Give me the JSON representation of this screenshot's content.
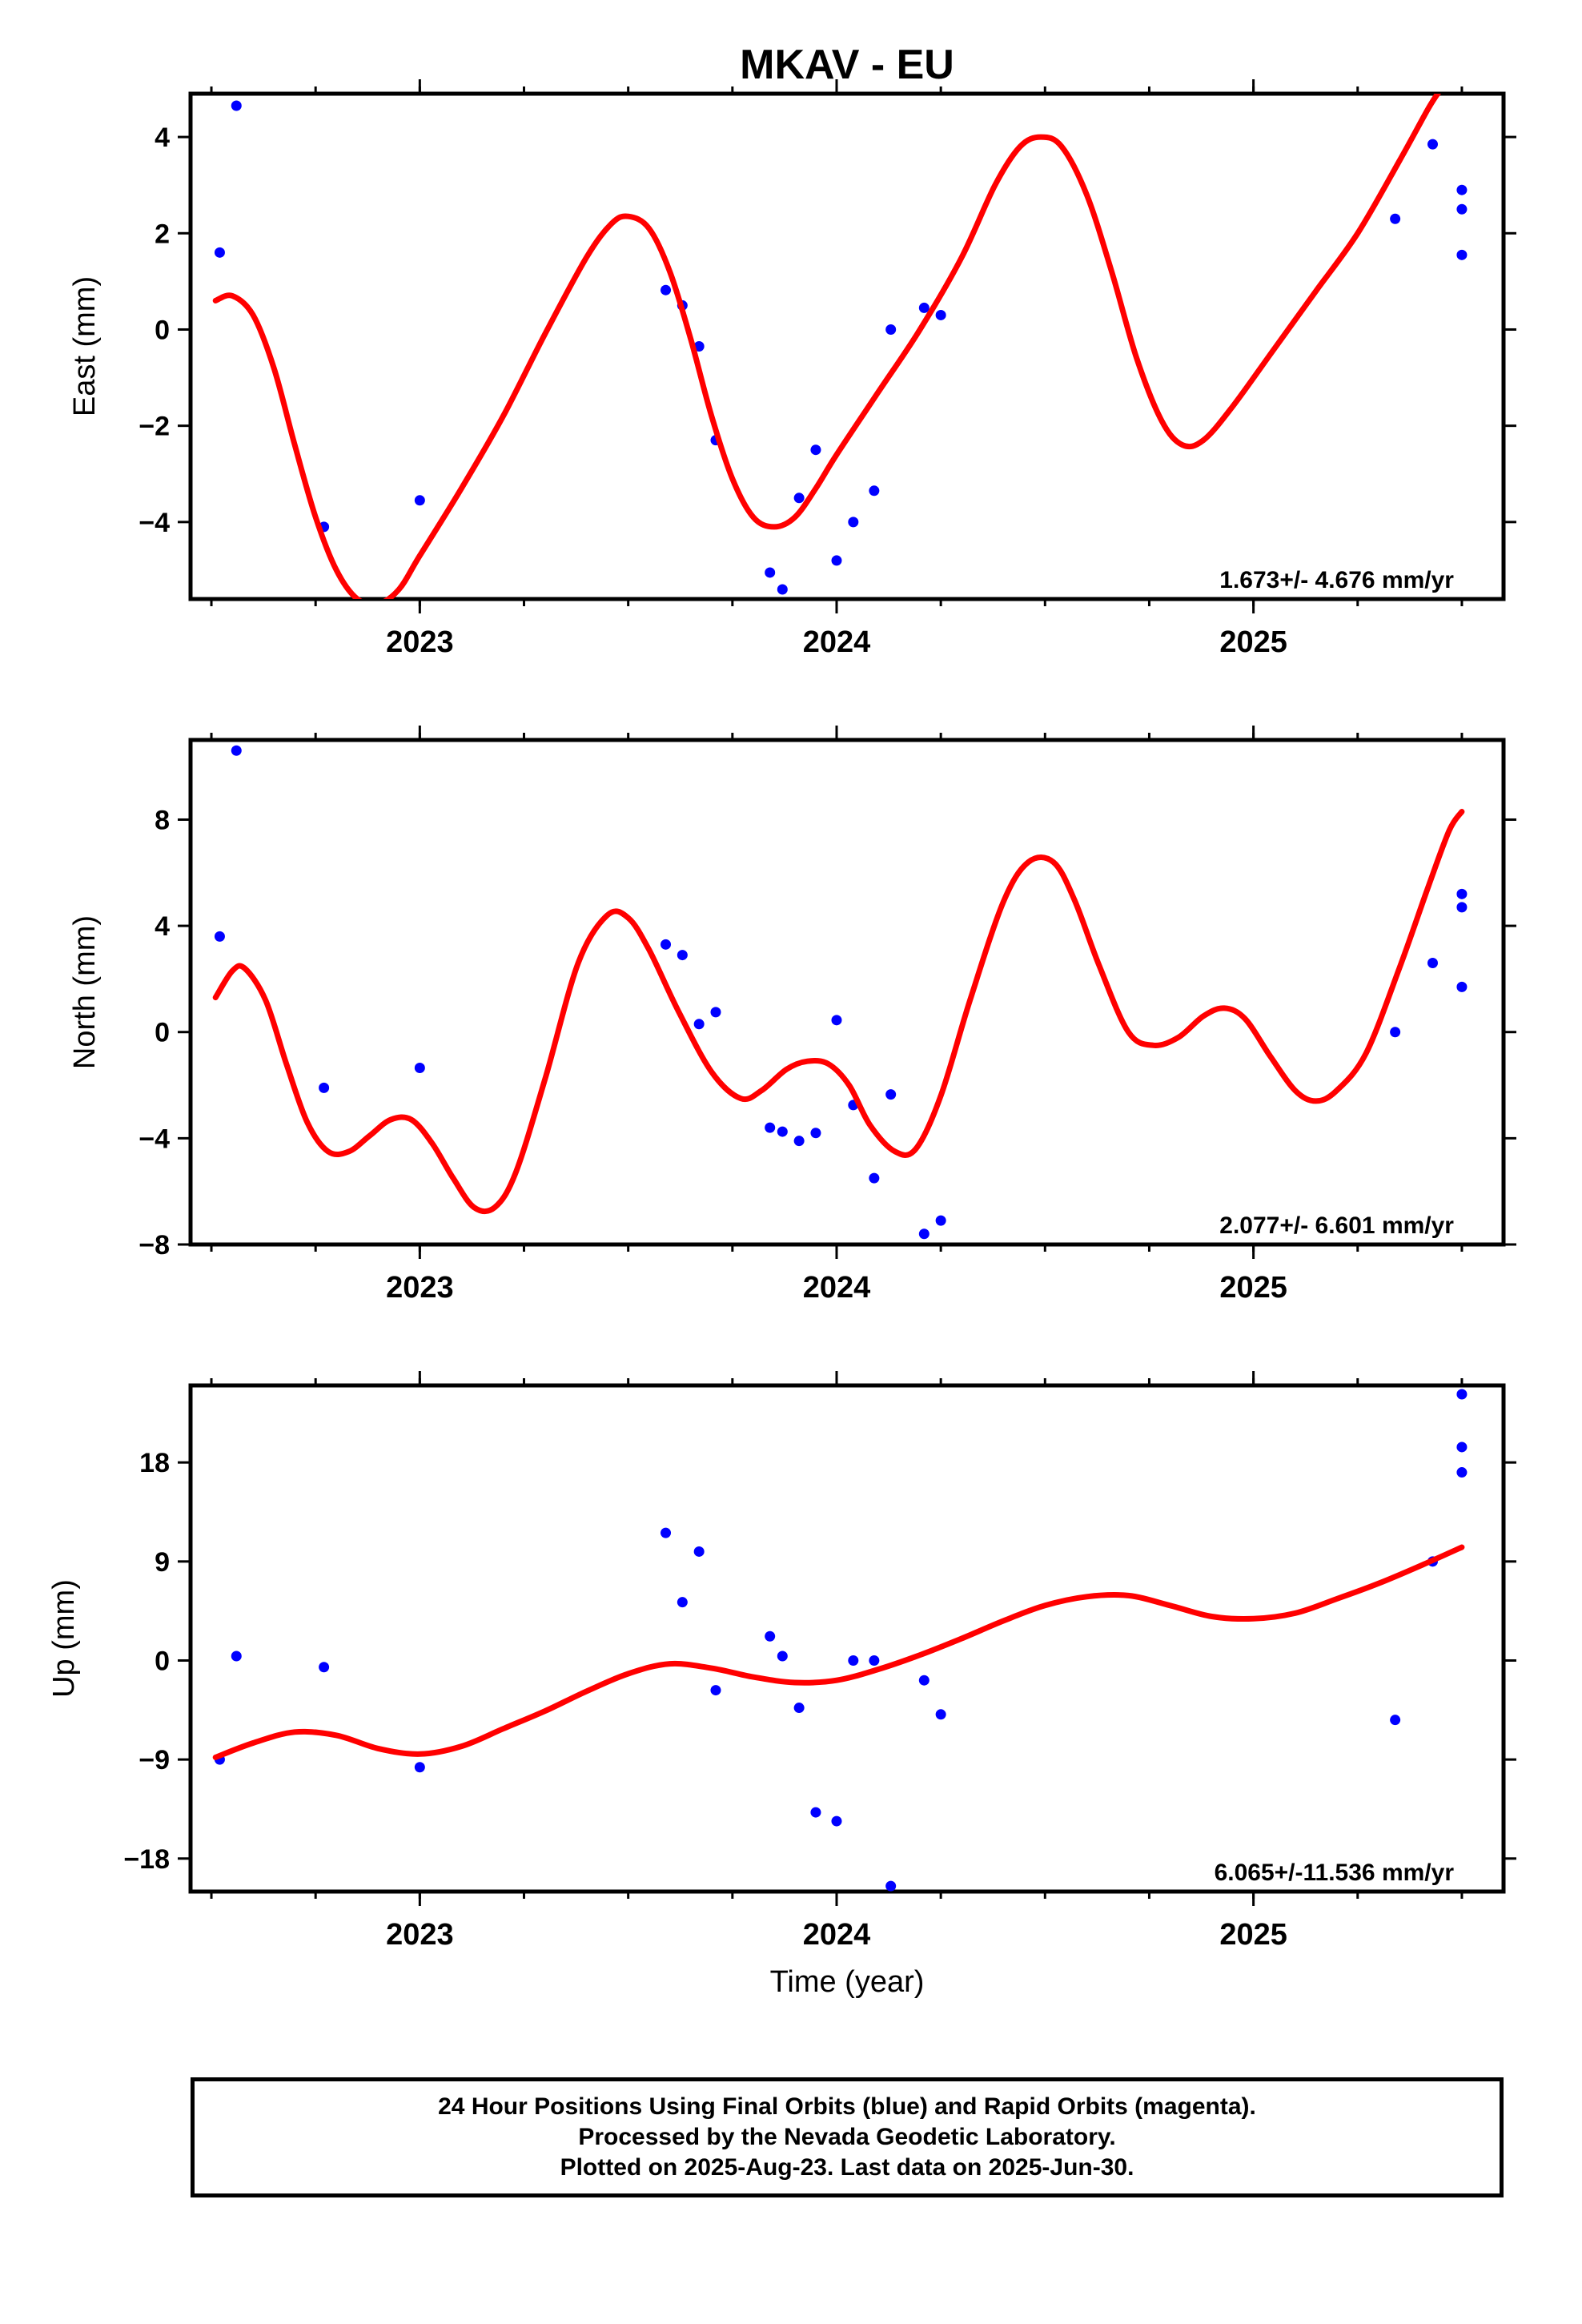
{
  "title": "MKAV - EU",
  "xlabel": "Time (year)",
  "colors": {
    "fit": "#ff0000",
    "final": "#0000ff",
    "axis": "#000000"
  },
  "footer": {
    "line1": "24 Hour Positions Using Final Orbits (blue) and Rapid Orbits (magenta).",
    "line2": "Processed by the Nevada Geodetic Laboratory.",
    "line3": "Plotted on 2025-Aug-23. Last data on 2025-Jun-30."
  },
  "chart_data": [
    {
      "type": "scatter",
      "panel": "east",
      "ylabel": "East (mm)",
      "rate_text": "1.673+/- 4.676 mm/yr",
      "xlim": [
        2022.45,
        2025.6
      ],
      "ylim": [
        -5.6,
        4.9
      ],
      "yticks": [
        -4,
        -2,
        0,
        2,
        4
      ],
      "xticks": [
        2023,
        2024,
        2025
      ],
      "grid": false,
      "points": [
        [
          2022.52,
          1.6
        ],
        [
          2022.56,
          4.65
        ],
        [
          2022.77,
          -4.1
        ],
        [
          2023.0,
          -3.55
        ],
        [
          2023.59,
          0.82
        ],
        [
          2023.63,
          0.5
        ],
        [
          2023.67,
          -0.35
        ],
        [
          2023.71,
          -2.3
        ],
        [
          2023.84,
          -5.05
        ],
        [
          2023.87,
          -5.4
        ],
        [
          2023.91,
          -3.5
        ],
        [
          2023.95,
          -2.5
        ],
        [
          2024.0,
          -4.8
        ],
        [
          2024.04,
          -4.0
        ],
        [
          2024.09,
          -3.35
        ],
        [
          2024.13,
          0.0
        ],
        [
          2024.21,
          0.45
        ],
        [
          2024.25,
          0.3
        ],
        [
          2025.34,
          2.3
        ],
        [
          2025.43,
          3.85
        ],
        [
          2025.5,
          2.9
        ],
        [
          2025.5,
          2.5
        ],
        [
          2025.5,
          1.55
        ]
      ],
      "fit": [
        [
          2022.51,
          0.6
        ],
        [
          2022.55,
          0.7
        ],
        [
          2022.6,
          0.3
        ],
        [
          2022.65,
          -0.8
        ],
        [
          2022.7,
          -2.4
        ],
        [
          2022.75,
          -3.9
        ],
        [
          2022.8,
          -5.0
        ],
        [
          2022.85,
          -5.6
        ],
        [
          2022.9,
          -5.7
        ],
        [
          2022.95,
          -5.4
        ],
        [
          2023.0,
          -4.7
        ],
        [
          2023.1,
          -3.3
        ],
        [
          2023.2,
          -1.8
        ],
        [
          2023.3,
          -0.1
        ],
        [
          2023.4,
          1.5
        ],
        [
          2023.46,
          2.2
        ],
        [
          2023.5,
          2.35
        ],
        [
          2023.55,
          2.1
        ],
        [
          2023.6,
          1.2
        ],
        [
          2023.65,
          -0.2
        ],
        [
          2023.7,
          -1.8
        ],
        [
          2023.75,
          -3.1
        ],
        [
          2023.8,
          -3.9
        ],
        [
          2023.85,
          -4.1
        ],
        [
          2023.9,
          -3.9
        ],
        [
          2023.95,
          -3.3
        ],
        [
          2024.0,
          -2.6
        ],
        [
          2024.1,
          -1.3
        ],
        [
          2024.2,
          0.0
        ],
        [
          2024.3,
          1.5
        ],
        [
          2024.38,
          3.0
        ],
        [
          2024.44,
          3.8
        ],
        [
          2024.49,
          4.0
        ],
        [
          2024.54,
          3.8
        ],
        [
          2024.6,
          2.8
        ],
        [
          2024.66,
          1.2
        ],
        [
          2024.72,
          -0.6
        ],
        [
          2024.78,
          -1.9
        ],
        [
          2024.83,
          -2.4
        ],
        [
          2024.88,
          -2.3
        ],
        [
          2024.95,
          -1.6
        ],
        [
          2025.05,
          -0.4
        ],
        [
          2025.15,
          0.8
        ],
        [
          2025.25,
          2.0
        ],
        [
          2025.35,
          3.5
        ],
        [
          2025.42,
          4.6
        ],
        [
          2025.45,
          5.0
        ]
      ]
    },
    {
      "type": "scatter",
      "panel": "north",
      "ylabel": "North (mm)",
      "rate_text": "2.077+/- 6.601 mm/yr",
      "xlim": [
        2022.45,
        2025.6
      ],
      "ylim": [
        -8,
        11
      ],
      "yticks": [
        -8,
        -4,
        0,
        4,
        8
      ],
      "xticks": [
        2023,
        2024,
        2025
      ],
      "grid": false,
      "points": [
        [
          2022.52,
          3.6
        ],
        [
          2022.56,
          10.6
        ],
        [
          2022.77,
          -2.1
        ],
        [
          2023.0,
          -1.35
        ],
        [
          2023.59,
          3.3
        ],
        [
          2023.63,
          2.9
        ],
        [
          2023.67,
          0.3
        ],
        [
          2023.71,
          0.75
        ],
        [
          2023.84,
          -3.6
        ],
        [
          2023.87,
          -3.75
        ],
        [
          2023.91,
          -4.1
        ],
        [
          2023.95,
          -3.8
        ],
        [
          2024.0,
          0.45
        ],
        [
          2024.04,
          -2.75
        ],
        [
          2024.09,
          -5.5
        ],
        [
          2024.13,
          -2.35
        ],
        [
          2024.21,
          -7.6
        ],
        [
          2024.25,
          -7.1
        ],
        [
          2025.34,
          0.0
        ],
        [
          2025.43,
          2.6
        ],
        [
          2025.5,
          5.2
        ],
        [
          2025.5,
          4.7
        ],
        [
          2025.5,
          1.7
        ]
      ],
      "fit": [
        [
          2022.51,
          1.3
        ],
        [
          2022.55,
          2.3
        ],
        [
          2022.58,
          2.4
        ],
        [
          2022.63,
          1.2
        ],
        [
          2022.68,
          -1.2
        ],
        [
          2022.73,
          -3.4
        ],
        [
          2022.78,
          -4.5
        ],
        [
          2022.83,
          -4.5
        ],
        [
          2022.88,
          -3.9
        ],
        [
          2022.93,
          -3.3
        ],
        [
          2022.98,
          -3.3
        ],
        [
          2023.03,
          -4.2
        ],
        [
          2023.08,
          -5.5
        ],
        [
          2023.13,
          -6.6
        ],
        [
          2023.18,
          -6.6
        ],
        [
          2023.23,
          -5.3
        ],
        [
          2023.3,
          -1.8
        ],
        [
          2023.38,
          2.6
        ],
        [
          2023.45,
          4.4
        ],
        [
          2023.5,
          4.3
        ],
        [
          2023.55,
          3.1
        ],
        [
          2023.62,
          0.8
        ],
        [
          2023.7,
          -1.5
        ],
        [
          2023.77,
          -2.5
        ],
        [
          2023.82,
          -2.2
        ],
        [
          2023.88,
          -1.4
        ],
        [
          2023.93,
          -1.1
        ],
        [
          2023.98,
          -1.2
        ],
        [
          2024.03,
          -2.0
        ],
        [
          2024.08,
          -3.5
        ],
        [
          2024.14,
          -4.5
        ],
        [
          2024.19,
          -4.4
        ],
        [
          2024.25,
          -2.4
        ],
        [
          2024.32,
          1.2
        ],
        [
          2024.4,
          4.9
        ],
        [
          2024.46,
          6.4
        ],
        [
          2024.52,
          6.4
        ],
        [
          2024.57,
          5.0
        ],
        [
          2024.63,
          2.5
        ],
        [
          2024.7,
          0.0
        ],
        [
          2024.76,
          -0.5
        ],
        [
          2024.82,
          -0.2
        ],
        [
          2024.88,
          0.6
        ],
        [
          2024.93,
          0.9
        ],
        [
          2024.98,
          0.5
        ],
        [
          2025.04,
          -0.9
        ],
        [
          2025.1,
          -2.2
        ],
        [
          2025.15,
          -2.6
        ],
        [
          2025.2,
          -2.2
        ],
        [
          2025.27,
          -0.8
        ],
        [
          2025.35,
          2.4
        ],
        [
          2025.42,
          5.5
        ],
        [
          2025.47,
          7.6
        ],
        [
          2025.5,
          8.3
        ]
      ]
    },
    {
      "type": "scatter",
      "panel": "up",
      "ylabel": "Up (mm)",
      "rate_text": "6.065+/-11.536 mm/yr",
      "xlim": [
        2022.45,
        2025.6
      ],
      "ylim": [
        -21,
        25
      ],
      "yticks": [
        -18,
        -9,
        0,
        9,
        18
      ],
      "xticks": [
        2023,
        2024,
        2025
      ],
      "grid": false,
      "points": [
        [
          2022.52,
          -9.0
        ],
        [
          2022.56,
          0.4
        ],
        [
          2022.77,
          -0.6
        ],
        [
          2023.0,
          -9.7
        ],
        [
          2023.59,
          11.6
        ],
        [
          2023.63,
          5.3
        ],
        [
          2023.67,
          9.9
        ],
        [
          2023.71,
          -2.7
        ],
        [
          2023.84,
          2.2
        ],
        [
          2023.87,
          0.4
        ],
        [
          2023.91,
          -4.3
        ],
        [
          2023.95,
          -13.8
        ],
        [
          2024.0,
          -14.6
        ],
        [
          2024.04,
          0.0
        ],
        [
          2024.09,
          0.0
        ],
        [
          2024.13,
          -20.5
        ],
        [
          2024.21,
          -1.8
        ],
        [
          2024.25,
          -4.9
        ],
        [
          2025.34,
          -5.4
        ],
        [
          2025.43,
          9.0
        ],
        [
          2025.5,
          24.2
        ],
        [
          2025.5,
          19.4
        ],
        [
          2025.5,
          17.1
        ]
      ],
      "fit": [
        [
          2022.51,
          -8.8
        ],
        [
          2022.6,
          -7.5
        ],
        [
          2022.7,
          -6.5
        ],
        [
          2022.8,
          -6.8
        ],
        [
          2022.9,
          -8.0
        ],
        [
          2023.0,
          -8.5
        ],
        [
          2023.1,
          -7.8
        ],
        [
          2023.2,
          -6.2
        ],
        [
          2023.3,
          -4.6
        ],
        [
          2023.4,
          -2.8
        ],
        [
          2023.5,
          -1.2
        ],
        [
          2023.6,
          -0.3
        ],
        [
          2023.7,
          -0.7
        ],
        [
          2023.8,
          -1.5
        ],
        [
          2023.9,
          -2.0
        ],
        [
          2024.0,
          -1.8
        ],
        [
          2024.1,
          -0.8
        ],
        [
          2024.2,
          0.5
        ],
        [
          2024.3,
          2.0
        ],
        [
          2024.4,
          3.6
        ],
        [
          2024.5,
          5.0
        ],
        [
          2024.6,
          5.8
        ],
        [
          2024.7,
          5.9
        ],
        [
          2024.8,
          5.0
        ],
        [
          2024.9,
          4.0
        ],
        [
          2025.0,
          3.8
        ],
        [
          2025.1,
          4.3
        ],
        [
          2025.2,
          5.6
        ],
        [
          2025.3,
          7.0
        ],
        [
          2025.4,
          8.6
        ],
        [
          2025.5,
          10.3
        ]
      ]
    }
  ]
}
